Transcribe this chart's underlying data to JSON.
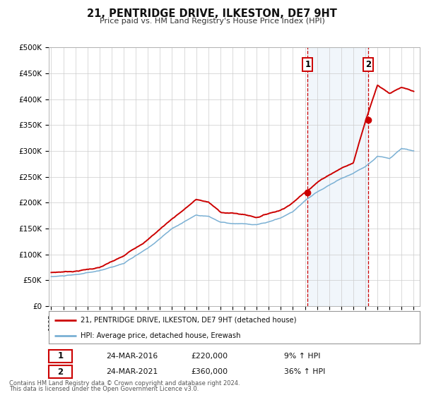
{
  "title": "21, PENTRIDGE DRIVE, ILKESTON, DE7 9HT",
  "subtitle": "Price paid vs. HM Land Registry's House Price Index (HPI)",
  "legend_line1": "21, PENTRIDGE DRIVE, ILKESTON, DE7 9HT (detached house)",
  "legend_line2": "HPI: Average price, detached house, Erewash",
  "sale1_date": "24-MAR-2016",
  "sale1_price": "£220,000",
  "sale1_hpi": "9% ↑ HPI",
  "sale2_date": "24-MAR-2021",
  "sale2_price": "£360,000",
  "sale2_hpi": "36% ↑ HPI",
  "footer1": "Contains HM Land Registry data © Crown copyright and database right 2024.",
  "footer2": "This data is licensed under the Open Government Licence v3.0.",
  "sale1_year": 2016.23,
  "sale1_value": 220000,
  "sale2_year": 2021.23,
  "sale2_value": 360000,
  "property_color": "#cc0000",
  "hpi_color": "#7ab0d4",
  "vline_color": "#cc0000",
  "shade_color": "#c8dff0",
  "ylim": [
    0,
    500000
  ],
  "xlim_start": 1994.8,
  "xlim_end": 2025.5,
  "background_color": "#ffffff",
  "grid_color": "#cccccc",
  "hpi_ctrl_years": [
    1995,
    1997,
    1999,
    2001,
    2003,
    2005,
    2007,
    2008,
    2009,
    2010,
    2011,
    2012,
    2013,
    2014,
    2015,
    2016,
    2017,
    2018,
    2019,
    2020,
    2021,
    2022,
    2023,
    2024,
    2025
  ],
  "hpi_ctrl_vals": [
    57000,
    60000,
    67000,
    82000,
    110000,
    148000,
    175000,
    173000,
    162000,
    158000,
    157000,
    155000,
    160000,
    168000,
    180000,
    202000,
    218000,
    232000,
    245000,
    255000,
    268000,
    290000,
    285000,
    305000,
    300000
  ],
  "prop_ctrl_years": [
    1995,
    1997,
    1999,
    2001,
    2003,
    2005,
    2007,
    2008,
    2009,
    2010,
    2011,
    2012,
    2013,
    2014,
    2015,
    2016,
    2017,
    2018,
    2019,
    2020,
    2021,
    2022,
    2023,
    2024,
    2025
  ],
  "prop_ctrl_vals": [
    65000,
    68000,
    75000,
    95000,
    128000,
    168000,
    205000,
    200000,
    180000,
    178000,
    175000,
    170000,
    178000,
    185000,
    200000,
    220000,
    240000,
    255000,
    268000,
    278000,
    360000,
    430000,
    415000,
    425000,
    415000
  ]
}
